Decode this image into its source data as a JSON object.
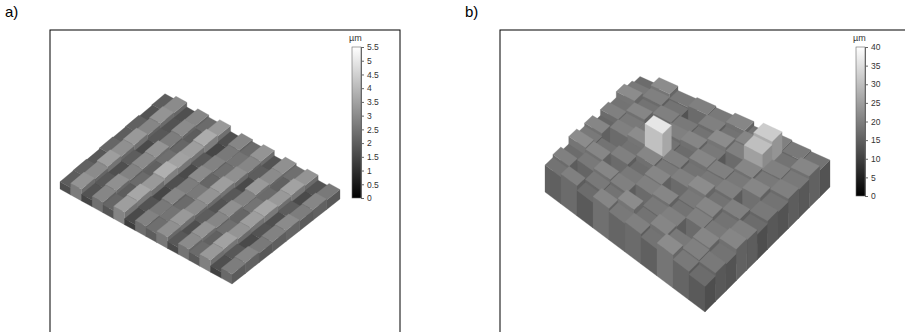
{
  "chart_data": [
    {
      "type": "surface",
      "title": "a)",
      "colorbar_label": "µm",
      "zlim": [
        0,
        5.5
      ],
      "zticks": [
        0,
        0.5,
        1,
        1.5,
        2,
        2.5,
        3,
        3.5,
        4,
        4.5,
        5,
        5.5
      ],
      "cells": [
        [
          2.0,
          2.1,
          1.9,
          2.2,
          2.0,
          2.1,
          1.8,
          2.0
        ],
        [
          3.2,
          3.0,
          3.4,
          3.1,
          3.3,
          2.9,
          3.2,
          3.0
        ],
        [
          1.8,
          1.9,
          1.7,
          2.0,
          1.6,
          1.9,
          1.8,
          1.7
        ],
        [
          2.9,
          3.1,
          2.8,
          3.0,
          3.2,
          2.7,
          3.0,
          2.9
        ],
        [
          2.2,
          2.0,
          2.3,
          2.1,
          2.4,
          2.2,
          2.0,
          2.3
        ],
        [
          3.4,
          3.6,
          3.3,
          3.8,
          3.5,
          3.4,
          3.7,
          3.3
        ],
        [
          1.6,
          1.8,
          1.5,
          1.7,
          1.6,
          1.9,
          1.5,
          1.7
        ],
        [
          2.8,
          2.6,
          2.9,
          2.7,
          3.0,
          2.8,
          2.6,
          2.9
        ],
        [
          2.4,
          2.5,
          2.3,
          2.6,
          2.2,
          2.4,
          2.5,
          2.3
        ],
        [
          3.1,
          3.3,
          3.0,
          3.2,
          3.4,
          3.1,
          2.9,
          3.2
        ],
        [
          1.9,
          1.7,
          2.0,
          1.8,
          1.9,
          1.6,
          2.0,
          1.8
        ],
        [
          3.0,
          3.2,
          2.9,
          3.1,
          2.8,
          3.3,
          3.0,
          3.1
        ],
        [
          2.3,
          2.1,
          2.4,
          2.2,
          2.5,
          2.3,
          2.1,
          2.4
        ],
        [
          3.3,
          3.5,
          3.2,
          3.4,
          3.6,
          3.3,
          3.5,
          3.2
        ],
        [
          1.7,
          1.9,
          1.6,
          1.8,
          1.7,
          2.0,
          1.6,
          1.8
        ],
        [
          2.7,
          2.9,
          2.6,
          2.8,
          3.0,
          2.7,
          2.9,
          2.6
        ]
      ]
    },
    {
      "type": "surface",
      "title": "b)",
      "colorbar_label": "µm",
      "zlim": [
        0,
        40
      ],
      "zticks": [
        0,
        5,
        10,
        15,
        20,
        25,
        30,
        35,
        40
      ],
      "cells": [
        [
          18,
          20,
          17,
          22,
          19,
          21,
          16,
          20,
          18,
          22,
          19,
          17
        ],
        [
          20,
          8,
          19,
          21,
          18,
          6,
          20,
          19,
          21,
          18,
          20,
          22
        ],
        [
          17,
          19,
          21,
          7,
          20,
          18,
          22,
          19,
          8,
          20,
          18,
          19
        ],
        [
          21,
          18,
          20,
          19,
          17,
          21,
          36,
          18,
          20,
          19,
          7,
          20
        ],
        [
          19,
          22,
          6,
          20,
          21,
          19,
          20,
          17,
          21,
          18,
          20,
          19
        ],
        [
          20,
          18,
          19,
          21,
          8,
          20,
          18,
          21,
          19,
          22,
          18,
          21
        ],
        [
          18,
          21,
          20,
          18,
          19,
          22,
          19,
          20,
          7,
          20,
          21,
          18
        ],
        [
          22,
          19,
          7,
          20,
          21,
          18,
          20,
          19,
          21,
          30,
          32,
          20
        ],
        [
          19,
          20,
          21,
          19,
          18,
          20,
          6,
          21,
          19,
          20,
          18,
          19
        ],
        [
          17,
          19,
          18,
          21,
          20,
          17,
          19,
          18,
          20,
          19,
          21,
          18
        ]
      ]
    }
  ]
}
